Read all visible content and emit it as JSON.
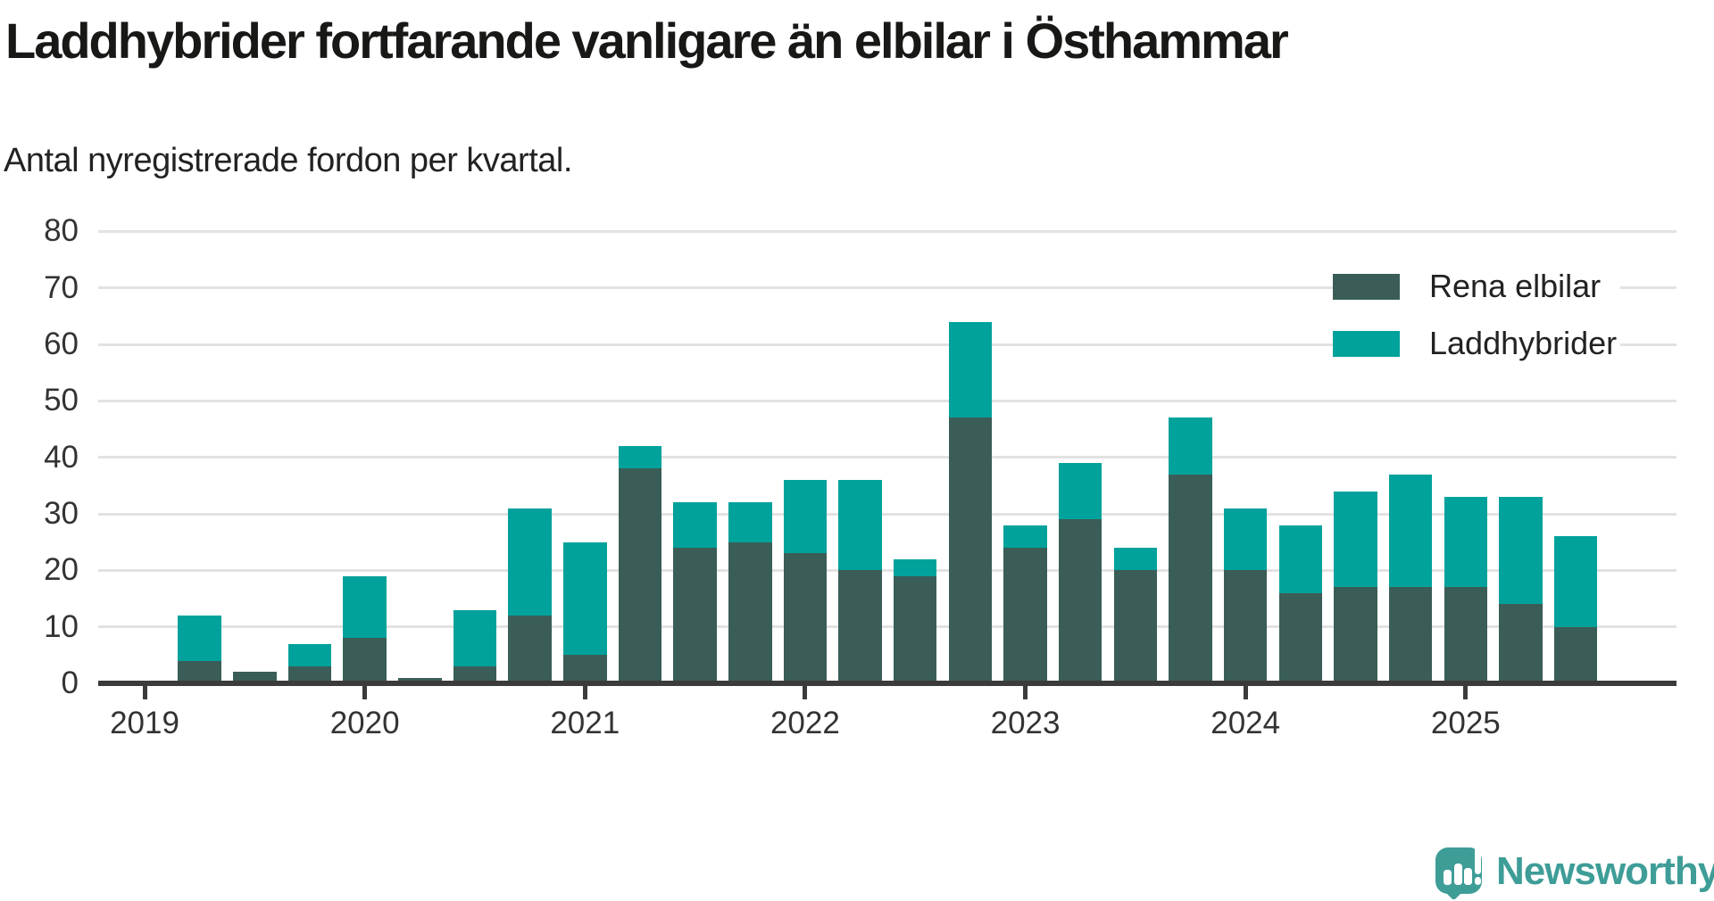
{
  "header": {
    "title": "Laddhybrider fortfarande vanligare än elbilar i Östhammar",
    "subtitle": "Antal nyregistrerade fordon per kvartal."
  },
  "legend": {
    "items": [
      {
        "label": "Rena elbilar",
        "color": "#3a5d57"
      },
      {
        "label": "Laddhybrider",
        "color": "#00a29b"
      }
    ]
  },
  "branding": {
    "logo_text": "Newsworthy",
    "logo_icon": "speech-bubble-bar-chart-icon",
    "color": "#3f9d98"
  },
  "chart_data": {
    "type": "bar",
    "stacked": true,
    "title": "Laddhybrider fortfarande vanligare än elbilar i Östhammar",
    "subtitle": "Antal nyregistrerade fordon per kvartal.",
    "xlabel": "",
    "ylabel": "",
    "ylim": [
      0,
      80
    ],
    "yticks": [
      0,
      10,
      20,
      30,
      40,
      50,
      60,
      70,
      80
    ],
    "grid": true,
    "legend_position": "top-right",
    "x": [
      "2019 Q1",
      "2019 Q2",
      "2019 Q3",
      "2019 Q4",
      "2020 Q1",
      "2020 Q2",
      "2020 Q3",
      "2020 Q4",
      "2021 Q1",
      "2021 Q2",
      "2021 Q3",
      "2021 Q4",
      "2022 Q1",
      "2022 Q2",
      "2022 Q3",
      "2022 Q4",
      "2023 Q1",
      "2023 Q2",
      "2023 Q3",
      "2023 Q4",
      "2024 Q1",
      "2024 Q2",
      "2024 Q3",
      "2024 Q4",
      "2025 Q1",
      "2025 Q2",
      "2025 Q3"
    ],
    "xticks": [
      "2019",
      "2020",
      "2021",
      "2022",
      "2023",
      "2024",
      "2025"
    ],
    "series": [
      {
        "name": "Rena elbilar",
        "color": "#3a5d57",
        "values": [
          0,
          4,
          2,
          3,
          8,
          1,
          3,
          12,
          5,
          38,
          24,
          25,
          23,
          20,
          19,
          47,
          24,
          29,
          20,
          37,
          20,
          16,
          17,
          17,
          17,
          14,
          10
        ]
      },
      {
        "name": "Laddhybrider",
        "color": "#00a29b",
        "values": [
          0,
          8,
          0,
          4,
          11,
          0,
          10,
          19,
          20,
          4,
          8,
          7,
          13,
          16,
          3,
          17,
          4,
          10,
          4,
          10,
          11,
          12,
          17,
          20,
          16,
          19,
          16
        ]
      }
    ]
  }
}
